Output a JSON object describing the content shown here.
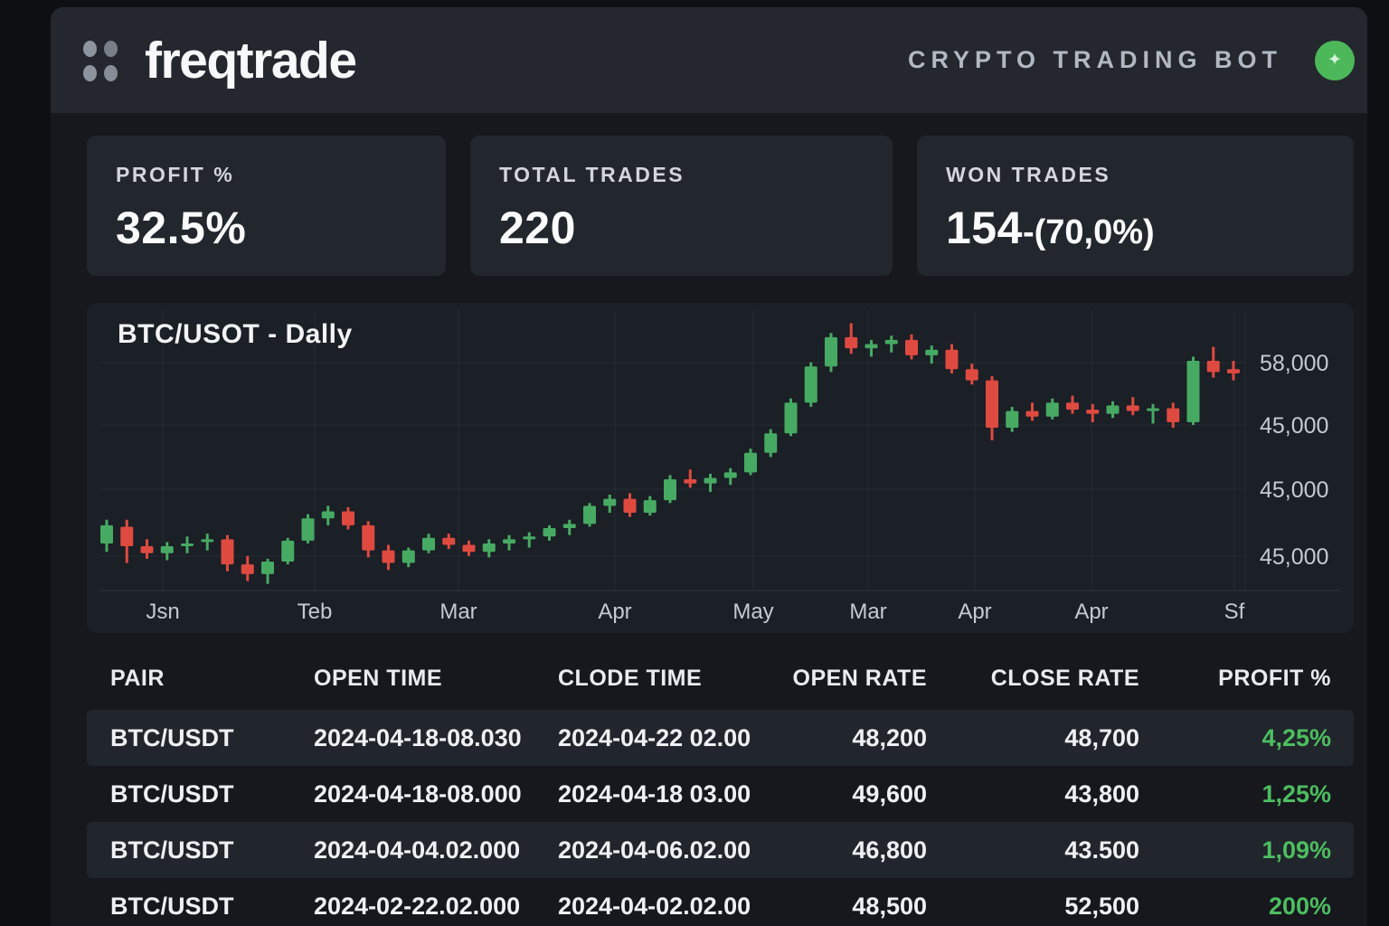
{
  "header": {
    "logo_text": "freqtrade",
    "tagline": "CRYPTO TRADING BOT",
    "icons": {
      "logo": "four-dot-grid",
      "status": "diamond-sparkle"
    },
    "status_glyph": "✦"
  },
  "stats": [
    {
      "label": "PROFIT %",
      "value": "32.5%"
    },
    {
      "label": "TOTAL TRADES",
      "value": "220"
    },
    {
      "label": "WON TRADES",
      "value": "154",
      "suffix": "-(70,0%)"
    }
  ],
  "chart_data": {
    "type": "candlestick",
    "title": "BTC/USOT - Dally",
    "x_tick_labels": [
      "Jsn",
      "Teb",
      "Mar",
      "Apr",
      "May",
      "Mar",
      "Apr",
      "Apr",
      "Sf"
    ],
    "y_tick_labels": [
      "58,000",
      "45,000",
      "45,000",
      "45,000"
    ],
    "ylim": [
      41500,
      62000
    ],
    "grid": true,
    "units": "USD, values stored in thousands",
    "candles_ohlc_k": [
      [
        45.2,
        46.9,
        44.6,
        46.5
      ],
      [
        46.4,
        46.9,
        43.8,
        45.0
      ],
      [
        45.0,
        45.5,
        44.1,
        44.5
      ],
      [
        44.5,
        45.3,
        44.0,
        45.0
      ],
      [
        45.0,
        45.7,
        44.5,
        45.2
      ],
      [
        45.4,
        45.9,
        44.7,
        45.5
      ],
      [
        45.5,
        45.8,
        43.2,
        43.7
      ],
      [
        43.7,
        44.3,
        42.5,
        43.0
      ],
      [
        43.0,
        44.1,
        42.3,
        43.9
      ],
      [
        43.9,
        45.6,
        43.7,
        45.4
      ],
      [
        45.4,
        47.3,
        45.2,
        47.0
      ],
      [
        47.0,
        47.9,
        46.5,
        47.5
      ],
      [
        47.5,
        47.8,
        46.2,
        46.5
      ],
      [
        46.5,
        46.8,
        44.2,
        44.7
      ],
      [
        44.7,
        45.1,
        43.3,
        43.8
      ],
      [
        43.8,
        44.9,
        43.5,
        44.7
      ],
      [
        44.7,
        45.9,
        44.5,
        45.6
      ],
      [
        45.6,
        45.9,
        44.8,
        45.1
      ],
      [
        45.1,
        45.4,
        44.3,
        44.6
      ],
      [
        44.6,
        45.5,
        44.2,
        45.2
      ],
      [
        45.2,
        45.8,
        44.7,
        45.5
      ],
      [
        45.5,
        46.0,
        44.9,
        45.7
      ],
      [
        45.7,
        46.5,
        45.4,
        46.3
      ],
      [
        46.3,
        46.9,
        45.8,
        46.6
      ],
      [
        46.6,
        48.1,
        46.4,
        47.9
      ],
      [
        47.9,
        48.7,
        47.4,
        48.4
      ],
      [
        48.4,
        48.8,
        47.1,
        47.4
      ],
      [
        47.4,
        48.6,
        47.2,
        48.3
      ],
      [
        48.3,
        50.1,
        48.1,
        49.8
      ],
      [
        49.8,
        50.5,
        49.2,
        49.5
      ],
      [
        49.5,
        50.2,
        48.9,
        49.9
      ],
      [
        49.9,
        50.6,
        49.4,
        50.3
      ],
      [
        50.3,
        52.0,
        50.1,
        51.7
      ],
      [
        51.7,
        53.4,
        51.4,
        53.1
      ],
      [
        53.1,
        55.6,
        52.9,
        55.3
      ],
      [
        55.3,
        58.2,
        55.0,
        57.9
      ],
      [
        57.9,
        60.3,
        57.5,
        60.0
      ],
      [
        60.0,
        61.0,
        58.8,
        59.2
      ],
      [
        59.2,
        59.8,
        58.6,
        59.5
      ],
      [
        59.5,
        60.1,
        58.9,
        59.8
      ],
      [
        59.8,
        60.2,
        58.4,
        58.7
      ],
      [
        58.7,
        59.4,
        58.1,
        59.1
      ],
      [
        59.1,
        59.5,
        57.4,
        57.7
      ],
      [
        57.7,
        58.1,
        56.6,
        56.9
      ],
      [
        56.9,
        57.2,
        52.6,
        53.5
      ],
      [
        53.5,
        55.0,
        53.2,
        54.7
      ],
      [
        54.7,
        55.3,
        54.0,
        54.3
      ],
      [
        54.3,
        55.6,
        54.1,
        55.3
      ],
      [
        55.3,
        55.8,
        54.5,
        54.8
      ],
      [
        54.8,
        55.2,
        53.9,
        54.5
      ],
      [
        54.5,
        55.4,
        54.2,
        55.1
      ],
      [
        55.1,
        55.7,
        54.4,
        54.7
      ],
      [
        54.7,
        55.2,
        53.8,
        54.9
      ],
      [
        54.9,
        55.3,
        53.5,
        53.9
      ],
      [
        53.9,
        58.6,
        53.7,
        58.3
      ],
      [
        58.3,
        59.3,
        57.1,
        57.5
      ],
      [
        57.7,
        58.3,
        56.9,
        57.4
      ]
    ]
  },
  "table": {
    "columns": [
      {
        "label": "PAIR",
        "align": "left"
      },
      {
        "label": "OPEN TIME",
        "align": "left"
      },
      {
        "label": "CLODE TIME",
        "align": "left"
      },
      {
        "label": "OPEN RATE",
        "align": "right"
      },
      {
        "label": "CLOSE RATE",
        "align": "right"
      },
      {
        "label": "PROFIT %",
        "align": "right"
      }
    ],
    "rows": [
      [
        "BTC/USDT",
        "2024-04-18-08.030",
        "2024-04-22 02.00",
        "48,200",
        "48,700",
        "4,25%"
      ],
      [
        "BTC/USDT",
        "2024-04-18-08.000",
        "2024-04-18 03.00",
        "49,600",
        "43,800",
        "1,25%"
      ],
      [
        "BTC/USDT",
        "2024-04-04.02.000",
        "2024-04-06.02.00",
        "46,800",
        "43.500",
        "1,09%"
      ],
      [
        "BTC/USDT",
        "2024-02-22.02.000",
        "2024-04-02.02.00",
        "48,500",
        "52,500",
        "200%"
      ]
    ]
  },
  "colors": {
    "candle_up": "#47aa63",
    "candle_down": "#de4a40",
    "profit_green": "#4cbe5f",
    "status_dot": "#4cb85a"
  }
}
